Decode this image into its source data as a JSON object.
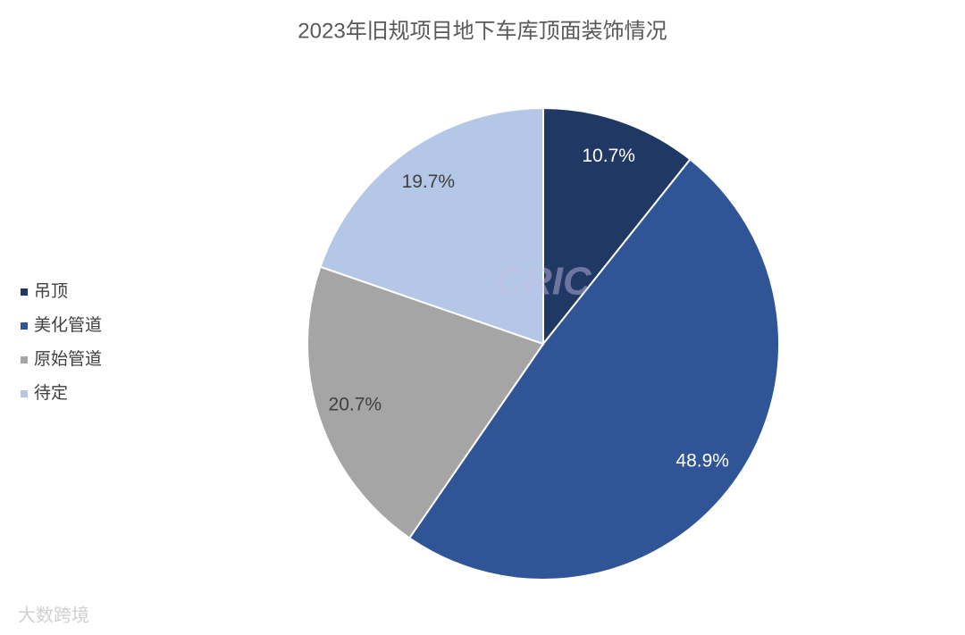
{
  "chart_data": {
    "type": "pie",
    "title": "2023年旧规项目地下车库顶面装饰情况",
    "categories": [
      "吊顶",
      "美化管道",
      "原始管道",
      "待定"
    ],
    "values": [
      10.7,
      48.9,
      20.7,
      19.7
    ],
    "value_labels": [
      "10.7%",
      "48.9%",
      "20.7%",
      "19.7%"
    ],
    "colors": [
      "#203864",
      "#2f5597",
      "#a5a5a5",
      "#b4c7e7"
    ],
    "label_colors": [
      "#ffffff",
      "#ffffff",
      "#404040",
      "#404040"
    ],
    "legend": "left",
    "watermarks": [
      "CRIC",
      "大数跨境"
    ]
  }
}
